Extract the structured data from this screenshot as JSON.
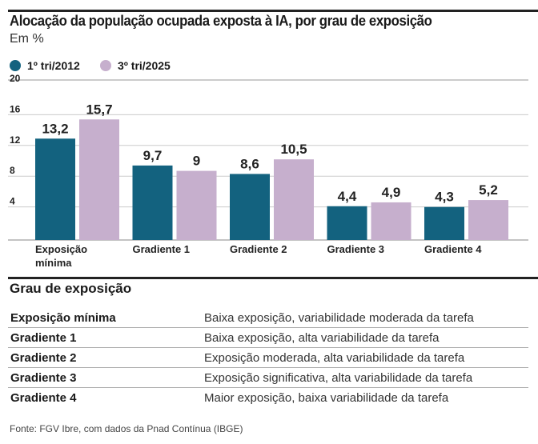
{
  "title": "Alocação da população ocupada exposta à IA, por grau de exposição",
  "subtitle": "Em %",
  "chart_data": {
    "type": "bar",
    "title": "Alocação da população ocupada exposta à IA, por grau de exposição",
    "ylabel": "Em %",
    "xlabel": "",
    "categories": [
      "Exposição mínima",
      "Gradiente 1",
      "Gradiente 2",
      "Gradiente 3",
      "Gradiente 4"
    ],
    "category_lines": [
      [
        "Exposição",
        "mínima"
      ],
      [
        "Gradiente 1"
      ],
      [
        "Gradiente 2"
      ],
      [
        "Gradiente 3"
      ],
      [
        "Gradiente 4"
      ]
    ],
    "series": [
      {
        "name": "1º tri/2012",
        "color": "#13627f",
        "values": [
          13.2,
          9.7,
          8.6,
          4.4,
          4.3
        ],
        "labels": [
          "13,2",
          "9,7",
          "8,6",
          "4,4",
          "4,3"
        ]
      },
      {
        "name": "3º tri/2025",
        "color": "#c6afcd",
        "values": [
          15.7,
          9,
          10.5,
          4.9,
          5.2
        ],
        "labels": [
          "15,7",
          "9",
          "10,5",
          "4,9",
          "5,2"
        ]
      }
    ],
    "ylim": [
      0,
      20
    ],
    "yticks": [
      4,
      8,
      12,
      16,
      20
    ],
    "ytick_labels": [
      "4",
      "8",
      "12",
      "16",
      "20"
    ],
    "grid": true,
    "legend": "top-left"
  },
  "table": {
    "title": "Grau de exposição",
    "rows": [
      {
        "key": "Exposição mínima",
        "desc": "Baixa exposição, variabilidade moderada da tarefa"
      },
      {
        "key": "Gradiente 1",
        "desc": "Baixa exposição, alta variabilidade da tarefa"
      },
      {
        "key": "Gradiente 2",
        "desc": "Exposição moderada, alta variabilidade da tarefa"
      },
      {
        "key": "Gradiente 3",
        "desc": "Exposição significativa, alta variabilidade da tarefa"
      },
      {
        "key": "Gradiente 4",
        "desc": "Maior exposição, baixa variabilidade da tarefa"
      }
    ]
  },
  "source": "Fonte: FGV Ibre, com dados da Pnad Contínua (IBGE)"
}
